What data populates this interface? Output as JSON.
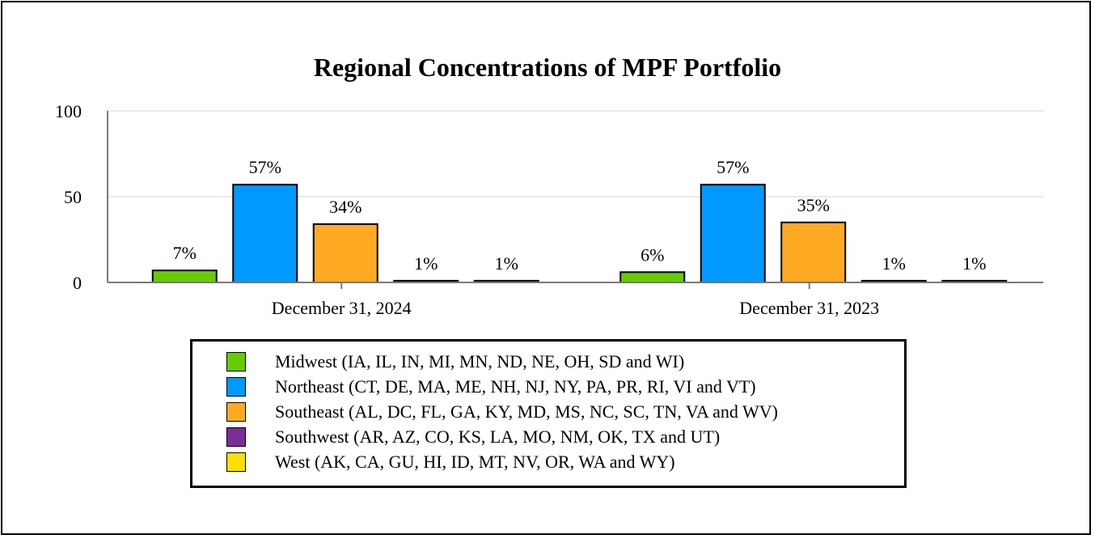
{
  "chart_data": {
    "type": "bar",
    "title": "Regional Concentrations of MPF Portfolio",
    "categories": [
      "December 31, 2024",
      "December 31, 2023"
    ],
    "ylim": [
      0,
      100
    ],
    "yticks": [
      "0",
      "50",
      "100"
    ],
    "grid": true,
    "legend_position": "bottom",
    "series": [
      {
        "name": "Midwest (IA, IL, IN, MI, MN, ND, NE, OH, SD and WI)",
        "color": "#66cc00",
        "values": [
          7,
          6
        ],
        "labels": [
          "7%",
          "6%"
        ]
      },
      {
        "name": "Northeast (CT, DE, MA, ME, NH, NJ, NY, PA, PR, RI, VI and VT)",
        "color": "#0099ff",
        "values": [
          57,
          57
        ],
        "labels": [
          "57%",
          "57%"
        ]
      },
      {
        "name": "Southeast (AL, DC, FL, GA, KY, MD, MS, NC, SC, TN, VA and WV)",
        "color": "#ffaa22",
        "values": [
          34,
          35
        ],
        "labels": [
          "34%",
          "35%"
        ]
      },
      {
        "name": "Southwest (AR, AZ, CO, KS, LA, MO, NM, OK, TX and UT)",
        "color": "#7a2e99",
        "values": [
          1,
          1
        ],
        "labels": [
          "1%",
          "1%"
        ]
      },
      {
        "name": "West (AK, CA, GU, HI, ID, MT, NV, OR, WA and WY)",
        "color": "#ffe000",
        "values": [
          1,
          1
        ],
        "labels": [
          "1%",
          "1%"
        ]
      }
    ]
  }
}
